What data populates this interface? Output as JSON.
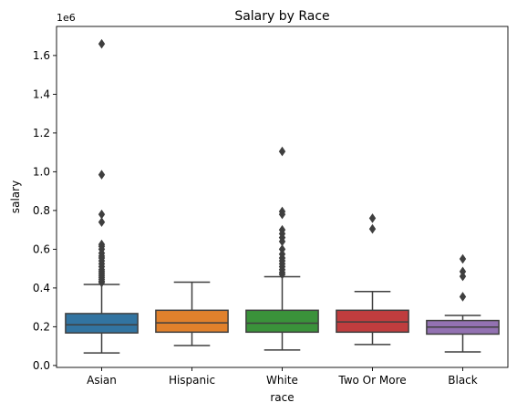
{
  "chart_data": {
    "type": "box",
    "title": "Salary by Race",
    "xlabel": "race",
    "ylabel": "salary",
    "y_offset_label": "1e6",
    "ylim": [
      -10000,
      1750000
    ],
    "yticks": [
      0.0,
      0.2,
      0.4,
      0.6,
      0.8,
      1.0,
      1.2,
      1.4,
      1.6
    ],
    "ytick_labels": [
      "0.0",
      "0.2",
      "0.4",
      "0.6",
      "0.8",
      "1.0",
      "1.2",
      "1.4",
      "1.6"
    ],
    "grid": false,
    "categories": [
      "Asian",
      "Hispanic",
      "White",
      "Two Or More",
      "Black"
    ],
    "boxes": [
      {
        "name": "Asian",
        "color": "#3274a1",
        "whisker_low": 65000,
        "q1": 168000,
        "median": 210000,
        "q3": 268000,
        "whisker_high": 418000,
        "outliers": [
          1660000,
          985000,
          780000,
          740000,
          625000,
          615000,
          600000,
          580000,
          565000,
          555000,
          540000,
          525000,
          510000,
          495000,
          485000,
          475000,
          465000,
          455000,
          445000,
          435000,
          428000
        ]
      },
      {
        "name": "Hispanic",
        "color": "#e1812c",
        "whisker_low": 103000,
        "q1": 172000,
        "median": 220000,
        "q3": 285000,
        "whisker_high": 430000,
        "outliers": []
      },
      {
        "name": "White",
        "color": "#3a923a",
        "whisker_low": 80000,
        "q1": 172000,
        "median": 218000,
        "q3": 285000,
        "whisker_high": 458000,
        "outliers": [
          1105000,
          795000,
          780000,
          700000,
          680000,
          660000,
          640000,
          600000,
          575000,
          555000,
          540000,
          525000,
          510000,
          495000,
          480000,
          470000
        ]
      },
      {
        "name": "Two Or More",
        "color": "#c03d3e",
        "whisker_low": 108000,
        "q1": 172000,
        "median": 225000,
        "q3": 285000,
        "whisker_high": 382000,
        "outliers": [
          760000,
          705000
        ]
      },
      {
        "name": "Black",
        "color": "#9372b2",
        "whisker_low": 70000,
        "q1": 162000,
        "median": 198000,
        "q3": 232000,
        "whisker_high": 258000,
        "outliers": [
          550000,
          485000,
          460000,
          355000
        ]
      }
    ]
  }
}
